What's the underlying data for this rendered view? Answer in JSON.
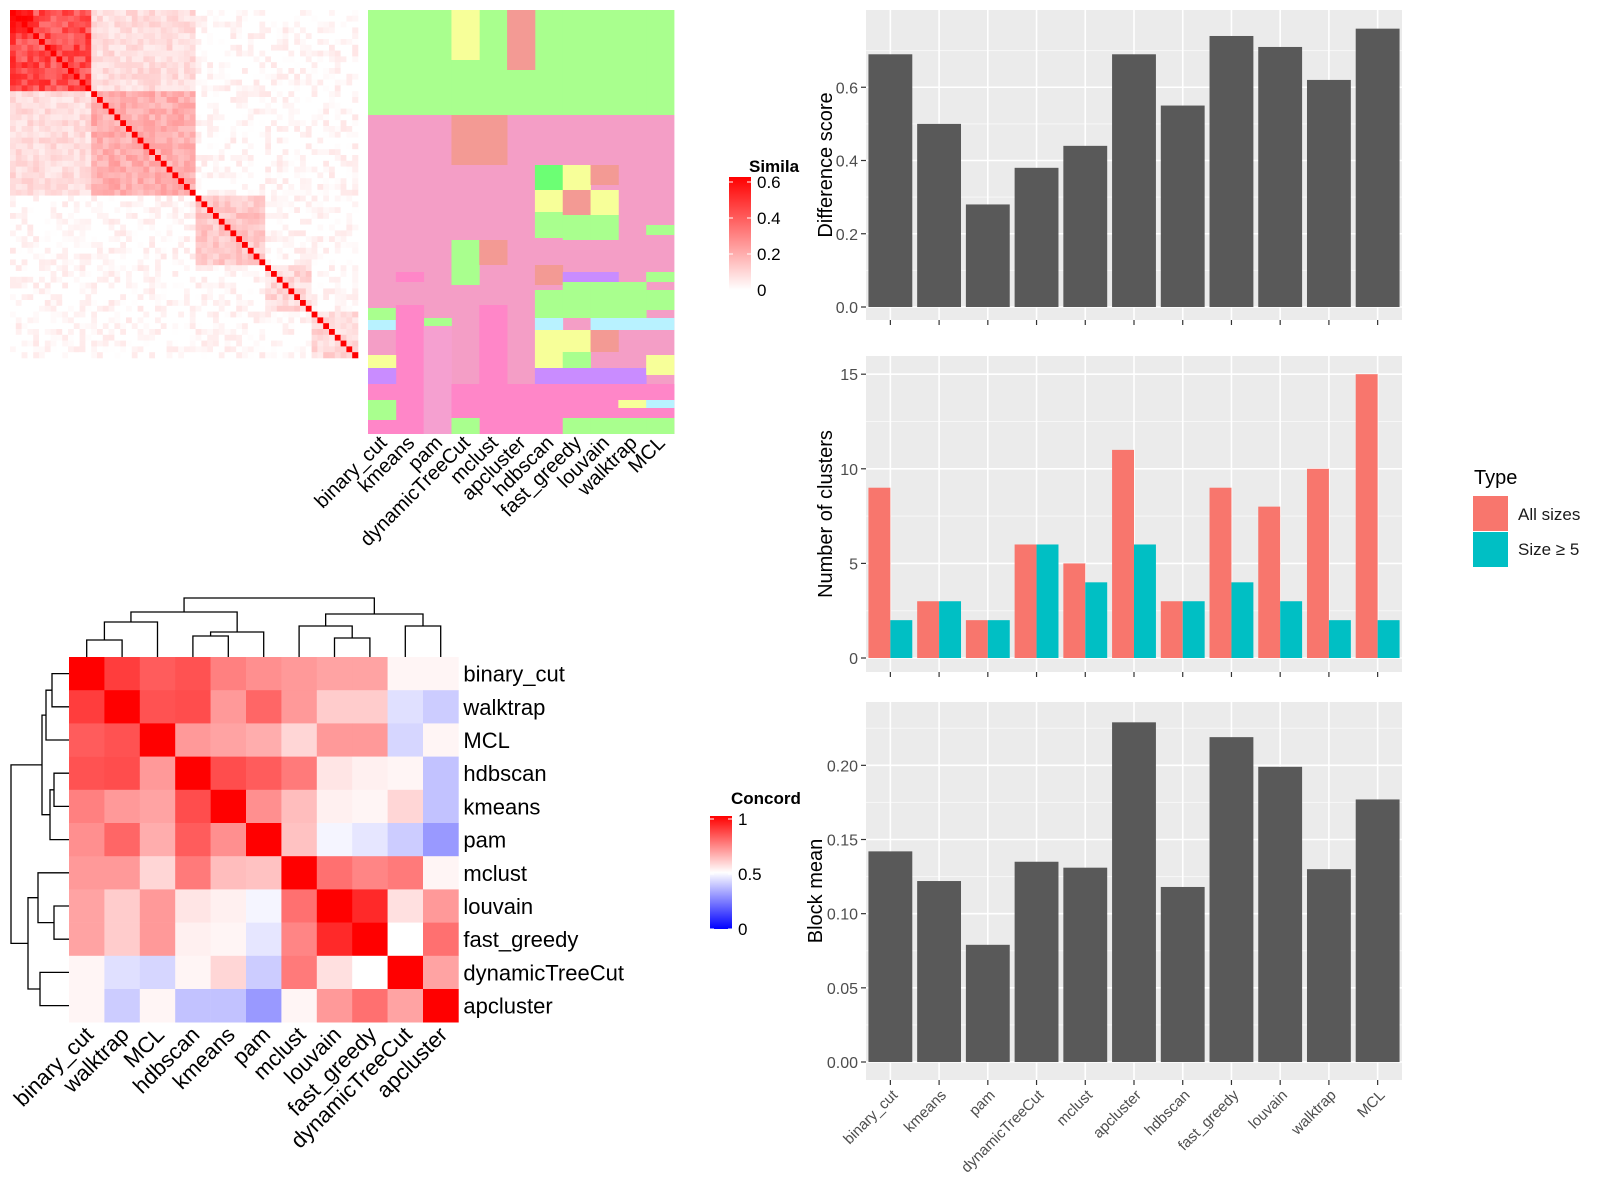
{
  "methods": [
    "binary_cut",
    "kmeans",
    "pam",
    "dynamicTreeCut",
    "mclust",
    "apcluster",
    "hdbscan",
    "fast_greedy",
    "louvain",
    "walktrap",
    "MCL"
  ],
  "legends": {
    "similarity_title": "Simila",
    "similarity_ticks": [
      "0.6",
      "0.4",
      "0.2",
      "0"
    ],
    "concordance_title": "Concord",
    "concordance_ticks": [
      "1",
      "0.5",
      "0"
    ],
    "type_title": "Type",
    "type_items": [
      "All sizes",
      "Size ≥ 5"
    ]
  },
  "colors": {
    "bar": "#595959",
    "all_sizes": "#F8766D",
    "size_ge5": "#00BFC4",
    "panel_bg": "#EBEBEB",
    "heat_high": "#FF0000",
    "heat_low": "#FFFFFF",
    "conc_low": "#0000FF",
    "cluster_green": "#A9FF8E",
    "cluster_pink": "#F49EC6"
  },
  "chart_data": [
    {
      "type": "heatmap",
      "name": "similarity heatmap",
      "legend_title": "Simila",
      "range": [
        0,
        0.6
      ],
      "size": 60
    },
    {
      "type": "heatmap",
      "name": "cluster assignment matrix",
      "xlabels": [
        "binary_cut",
        "kmeans",
        "pam",
        "dynamicTreeCut",
        "mclust",
        "apcluster",
        "hdbscan",
        "fast_greedy",
        "louvain",
        "walktrap",
        "MCL"
      ]
    },
    {
      "type": "heatmap",
      "name": "concordance heatmap",
      "legend_title": "Concord",
      "range": [
        0,
        1
      ],
      "labels": [
        "binary_cut",
        "walktrap",
        "MCL",
        "hdbscan",
        "kmeans",
        "pam",
        "mclust",
        "louvain",
        "fast_greedy",
        "dynamicTreeCut",
        "apcluster"
      ],
      "matrix": [
        [
          1.0,
          0.88,
          0.82,
          0.84,
          0.75,
          0.72,
          0.7,
          0.68,
          0.68,
          0.52,
          0.52
        ],
        [
          0.88,
          1.0,
          0.84,
          0.85,
          0.7,
          0.8,
          0.7,
          0.6,
          0.6,
          0.44,
          0.4
        ],
        [
          0.82,
          0.84,
          1.0,
          0.7,
          0.68,
          0.66,
          0.58,
          0.7,
          0.7,
          0.42,
          0.52
        ],
        [
          0.84,
          0.85,
          0.7,
          1.0,
          0.85,
          0.82,
          0.76,
          0.55,
          0.53,
          0.52,
          0.38
        ],
        [
          0.75,
          0.7,
          0.68,
          0.85,
          1.0,
          0.72,
          0.63,
          0.53,
          0.52,
          0.58,
          0.38
        ],
        [
          0.72,
          0.8,
          0.66,
          0.82,
          0.72,
          1.0,
          0.62,
          0.48,
          0.45,
          0.4,
          0.3
        ],
        [
          0.7,
          0.7,
          0.58,
          0.76,
          0.63,
          0.62,
          1.0,
          0.78,
          0.74,
          0.76,
          0.52
        ],
        [
          0.68,
          0.6,
          0.7,
          0.55,
          0.53,
          0.48,
          0.78,
          1.0,
          0.92,
          0.56,
          0.7
        ],
        [
          0.68,
          0.6,
          0.7,
          0.53,
          0.52,
          0.45,
          0.74,
          0.92,
          1.0,
          0.5,
          0.78
        ],
        [
          0.52,
          0.44,
          0.42,
          0.52,
          0.58,
          0.4,
          0.76,
          0.56,
          0.5,
          1.0,
          0.68
        ],
        [
          0.52,
          0.4,
          0.52,
          0.38,
          0.38,
          0.3,
          0.52,
          0.7,
          0.78,
          0.68,
          1.0
        ]
      ]
    },
    {
      "type": "bar",
      "name": "difference score",
      "ylabel": "Difference score",
      "categories": [
        "binary_cut",
        "kmeans",
        "pam",
        "dynamicTreeCut",
        "mclust",
        "apcluster",
        "hdbscan",
        "fast_greedy",
        "louvain",
        "walktrap",
        "MCL"
      ],
      "values": [
        0.69,
        0.5,
        0.28,
        0.38,
        0.44,
        0.69,
        0.55,
        0.74,
        0.71,
        0.62,
        0.76
      ],
      "ylim": [
        0,
        0.8
      ],
      "yticks": [
        "0.0",
        "0.2",
        "0.4",
        "0.6"
      ]
    },
    {
      "type": "bar",
      "name": "number of clusters",
      "ylabel": "Number of clusters",
      "categories": [
        "binary_cut",
        "kmeans",
        "pam",
        "dynamicTreeCut",
        "mclust",
        "apcluster",
        "hdbscan",
        "fast_greedy",
        "louvain",
        "walktrap",
        "MCL"
      ],
      "series": [
        {
          "name": "All sizes",
          "values": [
            9,
            3,
            2,
            6,
            5,
            11,
            3,
            9,
            8,
            10,
            15
          ]
        },
        {
          "name": "Size ≥ 5",
          "values": [
            2,
            3,
            2,
            6,
            4,
            6,
            3,
            4,
            3,
            2,
            2
          ]
        }
      ],
      "ylim": [
        0,
        15.75
      ],
      "yticks": [
        "0",
        "5",
        "10",
        "15"
      ],
      "legend": "right"
    },
    {
      "type": "bar",
      "name": "block mean",
      "ylabel": "Block mean",
      "categories": [
        "binary_cut",
        "kmeans",
        "pam",
        "dynamicTreeCut",
        "mclust",
        "apcluster",
        "hdbscan",
        "fast_greedy",
        "louvain",
        "walktrap",
        "MCL"
      ],
      "values": [
        0.142,
        0.122,
        0.079,
        0.135,
        0.131,
        0.229,
        0.118,
        0.219,
        0.199,
        0.13,
        0.177
      ],
      "ylim": [
        0,
        0.24
      ],
      "yticks": [
        "0.00",
        "0.05",
        "0.10",
        "0.15",
        "0.20"
      ]
    }
  ]
}
